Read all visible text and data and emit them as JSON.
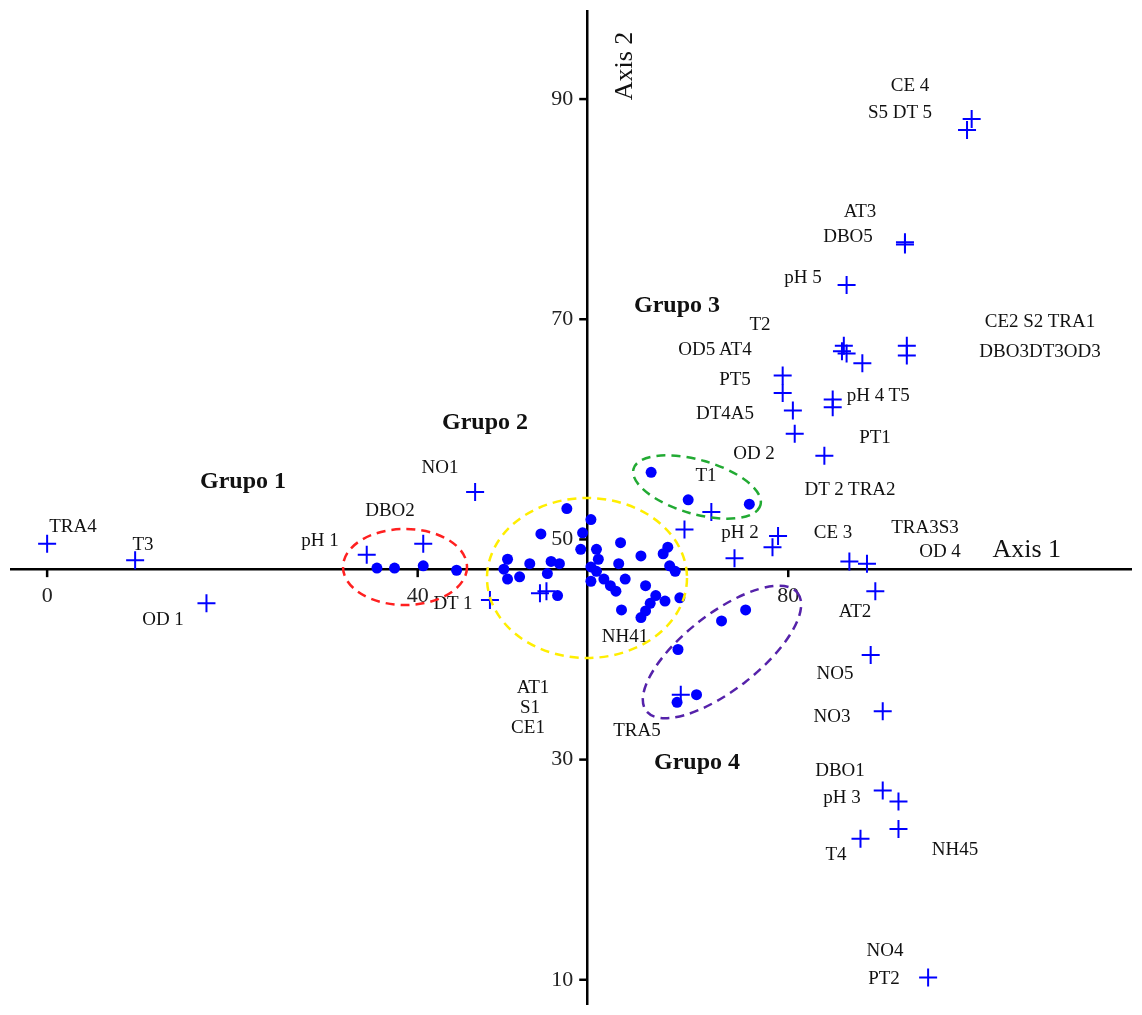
{
  "chart_data": {
    "type": "scatter",
    "xlabel": "Axis 1",
    "ylabel": "Axis 2",
    "xlim": [
      -3.9,
      117
    ],
    "ylim": [
      7.8,
      98
    ],
    "xticks": [
      0,
      40,
      80
    ],
    "yticks": [
      10,
      30,
      50,
      70,
      90
    ],
    "grid": false,
    "legend": false,
    "series": [
      {
        "marker": "circle",
        "color": "#0000ff",
        "x": [
          35.6,
          37.5,
          40.6,
          44.2,
          56.1,
          53.3,
          58.7,
          57.8,
          57.6,
          49.7,
          52.1,
          54.4,
          55.3,
          49.3,
          49.7,
          51.0,
          54.0,
          55.1,
          59.3,
          59.5,
          58.7,
          59.3,
          58.7,
          60.1,
          61.9,
          61.7,
          60.8,
          61.4,
          62.4,
          64.1,
          66.5,
          67.0,
          67.2,
          67.8,
          64.6,
          65.7,
          66.7,
          65.1,
          64.6,
          64.1,
          62.0,
          68.3,
          65.2,
          69.2,
          75.8,
          75.4,
          72.8,
          68.1,
          68.0,
          70.1
        ],
        "values": [
          47.4,
          47.4,
          47.6,
          47.2,
          52.8,
          50.5,
          51.8,
          50.6,
          49.1,
          48.2,
          47.8,
          48.0,
          47.8,
          47.3,
          46.4,
          46.6,
          46.9,
          44.9,
          49.1,
          48.2,
          47.5,
          47.1,
          46.2,
          46.4,
          49.7,
          47.8,
          45.8,
          45.3,
          46.4,
          48.5,
          48.7,
          49.3,
          47.6,
          47.1,
          45.8,
          44.9,
          44.4,
          44.2,
          43.5,
          42.9,
          43.6,
          44.7,
          56.1,
          53.6,
          53.2,
          43.6,
          42.6,
          40.0,
          35.2,
          35.9
        ]
      },
      {
        "marker": "cross",
        "color": "#0000ff",
        "x": [
          0,
          9.5,
          17.2,
          34.5,
          40.6,
          46.2,
          47.8,
          53.2,
          53.9,
          68.4,
          86.0,
          85.8,
          86.3,
          88.0,
          92.8,
          92.8,
          79.4,
          79.4,
          80.5,
          80.7,
          84.8,
          84.8,
          83.9,
          71.7,
          68.8,
          74.2,
          78.3,
          78.9,
          86.6,
          88.5,
          89.4,
          99.8,
          99.3,
          92.6,
          92.6,
          86.3,
          88.9,
          90.2,
          90.2,
          91.9,
          91.9,
          87.8,
          95.1
        ],
        "values": [
          49.6,
          48.1,
          44.2,
          48.6,
          49.6,
          54.3,
          44.5,
          45.1,
          45.3,
          35.9,
          67.6,
          67.1,
          66.9,
          66.0,
          67.6,
          66.7,
          64.9,
          63.3,
          61.7,
          59.6,
          62.7,
          62.0,
          57.6,
          52.5,
          50.9,
          48.3,
          49.3,
          50.3,
          48.0,
          47.8,
          45.3,
          88.2,
          87.2,
          77.0,
          76.8,
          73.1,
          39.5,
          34.4,
          27.2,
          26.2,
          23.7,
          22.8,
          10.2
        ]
      }
    ],
    "annotations": [
      "TRA4",
      "T3",
      "OD 1",
      "pH 1",
      "DBO2",
      "NO1",
      "DT 1",
      "AT1",
      "S1",
      "CE1",
      "NH41",
      "TRA5",
      "T1",
      "OD 2",
      "pH 2",
      "DT 2 TRA2",
      "CE 3",
      "TRA3S3",
      "OD 4",
      "AT2",
      "NO5",
      "NO3",
      "DBO1",
      "pH 3",
      "T4",
      "NH45",
      "NO4",
      "PT2",
      "CE 4",
      "S5 DT 5",
      "AT3",
      "DBO5",
      "pH 5",
      "T2",
      "OD5 AT4",
      "PT5",
      "DT4A5",
      "PT1",
      {
        "text": "pH 4 T5",
        "x": 84.8,
        "y": 62.7
      },
      "CE2 S2 TRA1",
      "DBO3DT3OD3",
      "Grupo 1",
      "Grupo 2",
      "Grupo 3",
      "Grupo 4"
    ]
  }
}
